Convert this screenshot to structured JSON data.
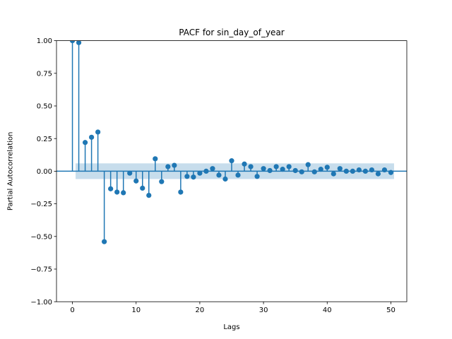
{
  "chart_data": {
    "type": "stem",
    "title": "PACF for sin_day_of_year",
    "xlabel": "Lags",
    "ylabel": "Partial Autocorrelation",
    "xlim": [
      -2.5,
      52.5
    ],
    "ylim": [
      -1.0,
      1.0
    ],
    "xticks": [
      0,
      10,
      20,
      30,
      40,
      50
    ],
    "yticks": [
      -1.0,
      -0.75,
      -0.5,
      -0.25,
      0.0,
      0.25,
      0.5,
      0.75,
      1.0
    ],
    "xtick_labels": [
      "0",
      "10",
      "20",
      "30",
      "40",
      "50"
    ],
    "ytick_labels": [
      "−1.00",
      "−0.75",
      "−0.50",
      "−0.25",
      "0.00",
      "0.25",
      "0.50",
      "0.75",
      "1.00"
    ],
    "lags": [
      0,
      1,
      2,
      3,
      4,
      5,
      6,
      7,
      8,
      9,
      10,
      11,
      12,
      13,
      14,
      15,
      16,
      17,
      18,
      19,
      20,
      21,
      22,
      23,
      24,
      25,
      26,
      27,
      28,
      29,
      30,
      31,
      32,
      33,
      34,
      35,
      36,
      37,
      38,
      39,
      40,
      41,
      42,
      43,
      44,
      45,
      46,
      47,
      48,
      49,
      50
    ],
    "values": [
      1.0,
      0.985,
      0.22,
      0.26,
      0.3,
      -0.54,
      -0.135,
      -0.16,
      -0.165,
      -0.015,
      -0.075,
      -0.13,
      -0.185,
      0.095,
      -0.08,
      0.035,
      0.045,
      -0.16,
      -0.04,
      -0.045,
      -0.015,
      0.0,
      0.02,
      -0.03,
      -0.06,
      0.08,
      -0.03,
      0.055,
      0.035,
      -0.04,
      0.02,
      0.005,
      0.035,
      0.015,
      0.035,
      0.005,
      -0.005,
      0.05,
      -0.005,
      0.015,
      0.03,
      -0.02,
      0.02,
      0.0,
      0.0,
      0.01,
      0.0,
      0.01,
      -0.02,
      0.01,
      -0.01
    ],
    "confidence_band": {
      "from_lag": 0.5,
      "to_lag": 50.5,
      "lower": -0.06,
      "upper": 0.06
    },
    "colors": {
      "stem": "#1f77b4",
      "band": "#1f77b4",
      "zero_line": "#1f77b4",
      "axes": "#000000"
    }
  }
}
